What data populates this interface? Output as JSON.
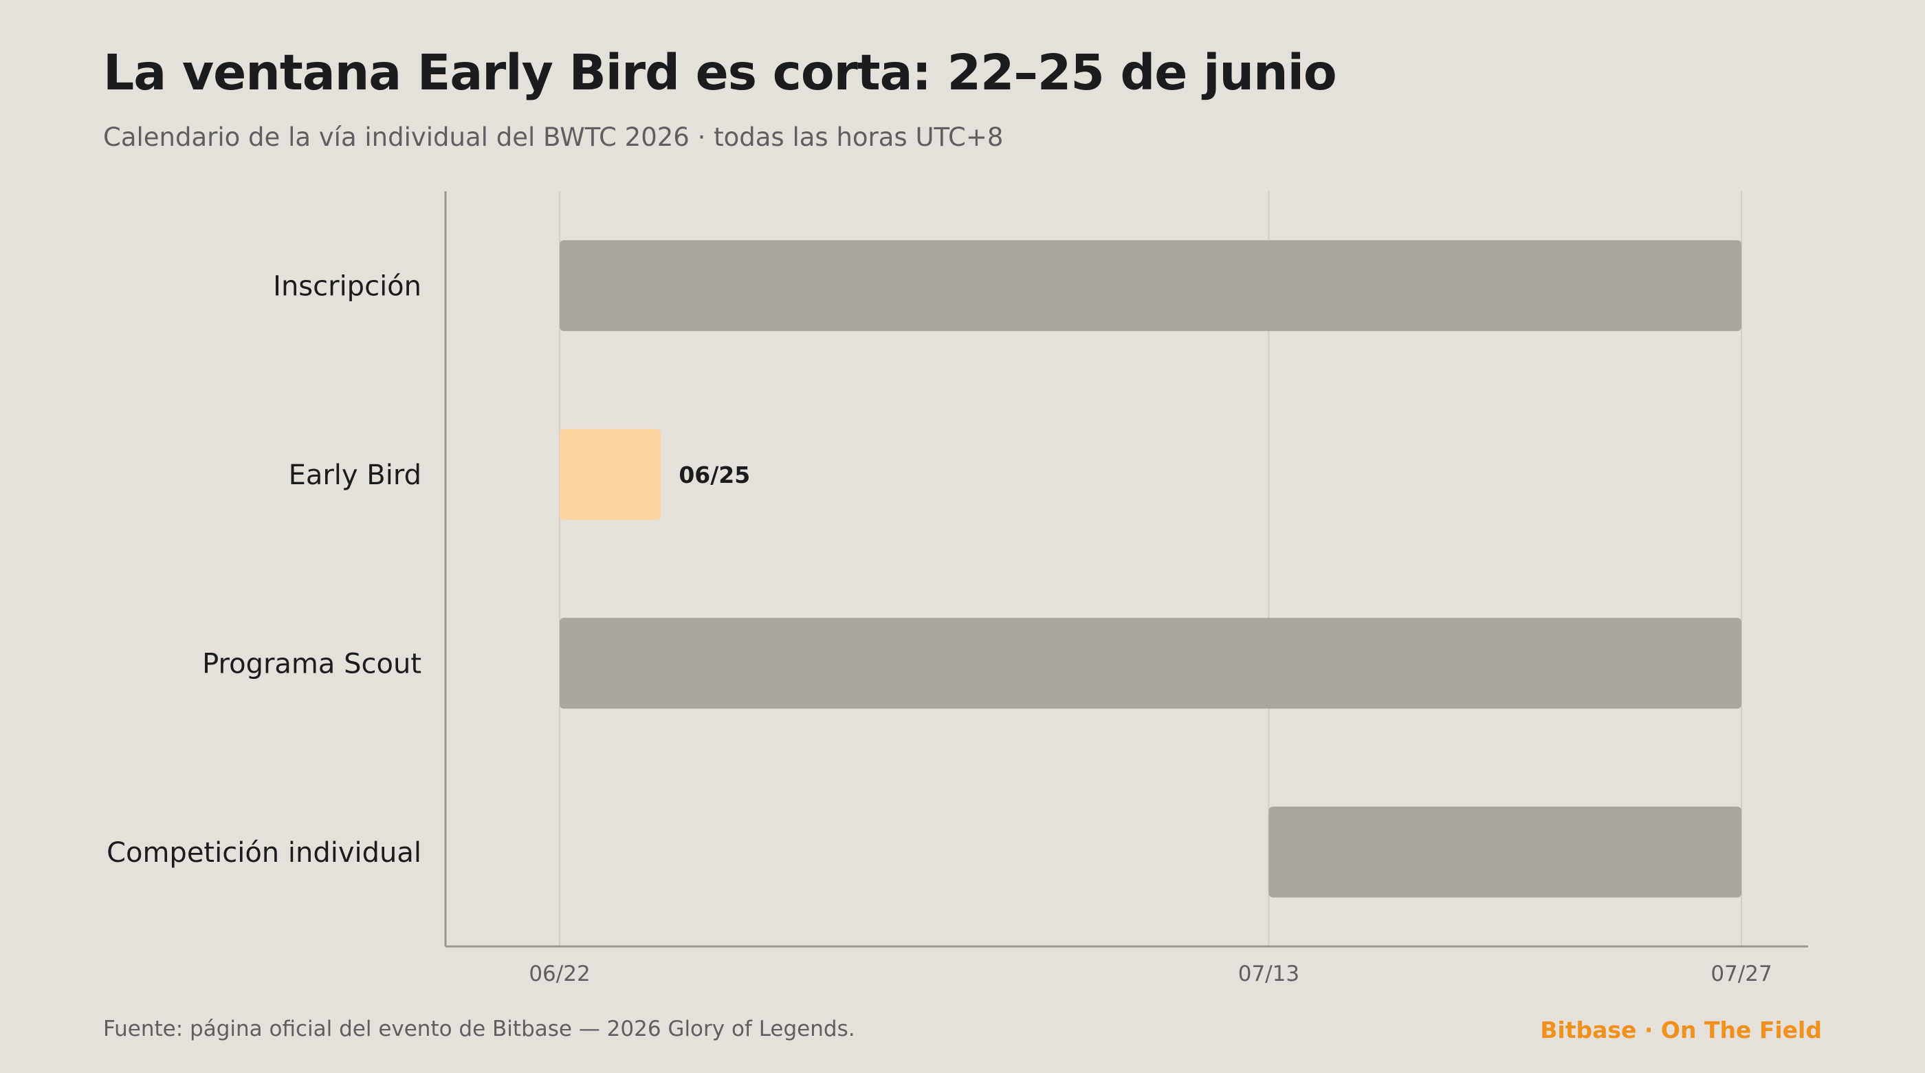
{
  "title": "La ventana Early Bird es corta: 22–25 de junio",
  "subtitle": "Calendario de la vía individual del BWTC 2026 · todas las horas UTC+8",
  "footer": {
    "source": "Fuente: página oficial del evento de Bitbase — 2026 Glory of Legends.",
    "brand": "Bitbase · On The Field"
  },
  "colors": {
    "bar": "#aaa59f",
    "highlight": "#f9d49e",
    "brand": "#f0911e",
    "grid": "#d2cdc7",
    "axis": "#9b968f"
  },
  "chart_data": {
    "type": "bar",
    "orientation": "horizontal",
    "title": "La ventana Early Bird es corta: 22–25 de junio",
    "subtitle": "Calendario de la vía individual del BWTC 2026 · todas las horas UTC+8",
    "x_range": [
      "2026-06-22",
      "2026-07-27"
    ],
    "x_ticks": [
      {
        "date": "2026-06-22",
        "label": "06/22"
      },
      {
        "date": "2026-07-13",
        "label": "07/13"
      },
      {
        "date": "2026-07-27",
        "label": "07/27"
      }
    ],
    "grid": true,
    "tasks": [
      {
        "label": "Inscripción",
        "start": "2026-06-22",
        "end": "2026-07-27",
        "highlight": false,
        "end_label": ""
      },
      {
        "label": "Early Bird",
        "start": "2026-06-22",
        "end": "2026-06-25",
        "highlight": true,
        "end_label": "06/25"
      },
      {
        "label": "Programa Scout",
        "start": "2026-06-22",
        "end": "2026-07-27",
        "highlight": false,
        "end_label": ""
      },
      {
        "label": "Competición individual",
        "start": "2026-07-13",
        "end": "2026-07-27",
        "highlight": false,
        "end_label": ""
      }
    ]
  }
}
